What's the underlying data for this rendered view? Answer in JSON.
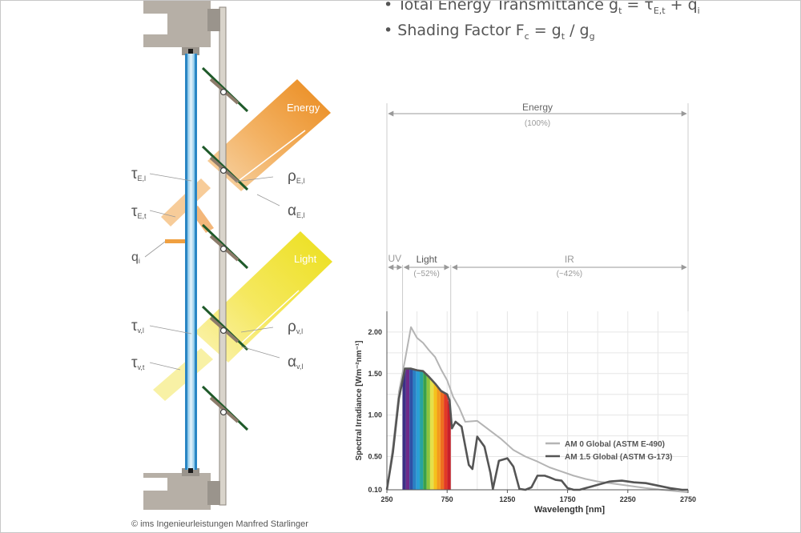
{
  "formulas": [
    {
      "bullet": "•",
      "pre": "Total Energy Transmittance g",
      "sub1": "t",
      "mid": " = τ",
      "sub2": "E,t",
      "post": " + q",
      "sub3": "i"
    },
    {
      "bullet": "•",
      "pre": "Shading Factor F",
      "sub1": "c",
      "mid": " = g",
      "sub2": "t",
      "post": "  / g",
      "sub3": "g"
    }
  ],
  "façade": {
    "beam_energy": "Energy",
    "beam_light": "Light",
    "symbols": [
      {
        "sym": "τ",
        "sub": "E,l"
      },
      {
        "sym": "τ",
        "sub": "E,t"
      },
      {
        "sym": "q",
        "sub": "i"
      },
      {
        "sym": "τ",
        "sub": "v,l"
      },
      {
        "sym": "τ",
        "sub": "v,t"
      },
      {
        "sym": "ρ",
        "sub": "E,l"
      },
      {
        "sym": "α",
        "sub": "E,l"
      },
      {
        "sym": "ρ",
        "sub": "v,l"
      },
      {
        "sym": "α",
        "sub": "v,l"
      }
    ]
  },
  "spectrum": {
    "energy_label": "Energy",
    "energy_pct": "(100%)",
    "uv_label": "UV",
    "light_label": "Light",
    "light_pct": "(~52%)",
    "ir_label": "IR",
    "ir_pct": "(~42%)"
  },
  "chart_data": {
    "type": "line",
    "xlabel": "Wavelength [nm]",
    "ylabel": "Spectral Irradiance [Wm⁻²nm⁻¹]",
    "xlim": [
      250,
      2750
    ],
    "ylim": [
      0.1,
      2.25
    ],
    "xticks": [
      250,
      750,
      1250,
      1750,
      2250,
      2750
    ],
    "xtick_labels": [
      "250",
      "750",
      "1250",
      "1750",
      "2250",
      "2750"
    ],
    "yticks": [
      0.1,
      0.5,
      1.0,
      1.5,
      2.0
    ],
    "ytick_labels": [
      "0.10",
      "0.50",
      "1.00",
      "1.50",
      "2.00"
    ],
    "grid": true,
    "legend_position": "lower-right",
    "series": [
      {
        "name": "AM 0 Global (ASTM E-490)",
        "color": "#b4b4b4",
        "x": [
          250,
          300,
          350,
          400,
          450,
          500,
          550,
          600,
          650,
          700,
          750,
          800,
          850,
          900,
          1000,
          1100,
          1200,
          1300,
          1400,
          1500,
          1600,
          1700,
          1800,
          1900,
          2000,
          2200,
          2400,
          2600,
          2750
        ],
        "y": [
          0.1,
          0.62,
          1.28,
          1.66,
          2.06,
          1.93,
          1.87,
          1.78,
          1.7,
          1.55,
          1.42,
          1.22,
          1.09,
          0.92,
          0.93,
          0.82,
          0.71,
          0.58,
          0.5,
          0.44,
          0.37,
          0.32,
          0.27,
          0.23,
          0.2,
          0.16,
          0.12,
          0.09,
          0.07
        ]
      },
      {
        "name": "AM 1.5 Global (ASTM G-173)",
        "color": "#555555",
        "x": [
          250,
          300,
          350,
          400,
          450,
          500,
          550,
          600,
          650,
          700,
          750,
          770,
          790,
          820,
          870,
          930,
          960,
          1000,
          1060,
          1110,
          1130,
          1180,
          1250,
          1300,
          1350,
          1400,
          1450,
          1500,
          1560,
          1600,
          1650,
          1700,
          1750,
          1800,
          1850,
          1900,
          1950,
          2000,
          2100,
          2200,
          2300,
          2400,
          2500,
          2600,
          2700,
          2750
        ],
        "y": [
          0.1,
          0.55,
          1.2,
          1.56,
          1.56,
          1.54,
          1.53,
          1.46,
          1.38,
          1.29,
          1.25,
          1.18,
          0.84,
          0.92,
          0.86,
          0.4,
          0.35,
          0.74,
          0.62,
          0.3,
          0.11,
          0.45,
          0.48,
          0.38,
          0.11,
          0.1,
          0.13,
          0.27,
          0.27,
          0.25,
          0.22,
          0.21,
          0.12,
          0.1,
          0.1,
          0.12,
          0.14,
          0.16,
          0.2,
          0.21,
          0.19,
          0.18,
          0.15,
          0.12,
          0.1,
          0.1
        ]
      }
    ],
    "visible_band": {
      "x": [
        380,
        780
      ],
      "colors": [
        "#3b2f86",
        "#6d2a8a",
        "#2f4fa5",
        "#2980c4",
        "#2a9fd6",
        "#27a3a0",
        "#3aa14a",
        "#8cc43d",
        "#e5e04a",
        "#f4c21b",
        "#f39a1e",
        "#ee6f1f",
        "#e23a25",
        "#c8202a"
      ]
    }
  },
  "credit": "© ims Ingenieurleistungen Manfred Starlinger"
}
